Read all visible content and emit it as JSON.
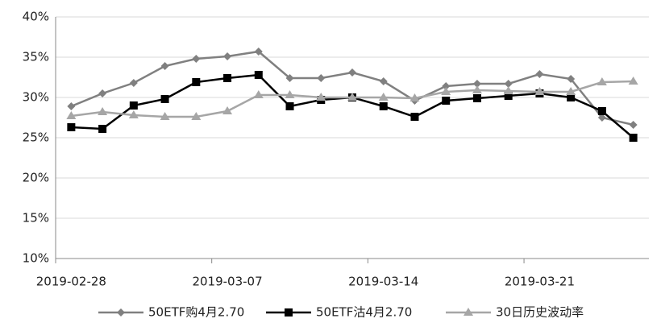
{
  "chart_data": {
    "type": "line",
    "categories": [
      "2019-02-28",
      null,
      null,
      null,
      null,
      "2019-03-07",
      null,
      null,
      null,
      null,
      "2019-03-14",
      null,
      null,
      null,
      null,
      "2019-03-21",
      null,
      null,
      null
    ],
    "series": [
      {
        "name": "50ETF购4月2.70",
        "color": "#808080",
        "marker": "diamond",
        "values": [
          28.9,
          30.5,
          31.8,
          33.9,
          34.8,
          35.1,
          35.7,
          32.4,
          32.4,
          33.1,
          32.0,
          29.6,
          31.4,
          31.7,
          31.7,
          32.9,
          32.3,
          27.5,
          26.6
        ]
      },
      {
        "name": "50ETF沽4月2.70",
        "color": "#000000",
        "marker": "square",
        "values": [
          26.3,
          26.1,
          29.0,
          29.8,
          31.9,
          32.4,
          32.8,
          28.9,
          29.7,
          30.0,
          28.9,
          27.6,
          29.6,
          29.9,
          30.2,
          30.5,
          30.0,
          28.3,
          25.0
        ]
      },
      {
        "name": "30日历史波动率",
        "color": "#a6a6a6",
        "marker": "triangle",
        "values": [
          27.7,
          28.2,
          27.8,
          27.6,
          27.6,
          28.3,
          30.3,
          30.3,
          30.0,
          30.0,
          30.0,
          29.9,
          30.7,
          30.9,
          30.8,
          30.7,
          30.7,
          31.9,
          32.0
        ]
      }
    ],
    "ylim": [
      10,
      40
    ],
    "yticks": [
      {
        "value": 10,
        "label": "10%"
      },
      {
        "value": 15,
        "label": "15%"
      },
      {
        "value": 20,
        "label": "20%"
      },
      {
        "value": 25,
        "label": "25%"
      },
      {
        "value": 30,
        "label": "30%"
      },
      {
        "value": 35,
        "label": "35%"
      },
      {
        "value": 40,
        "label": "40%"
      }
    ],
    "grid": true,
    "legend": "bottom"
  }
}
